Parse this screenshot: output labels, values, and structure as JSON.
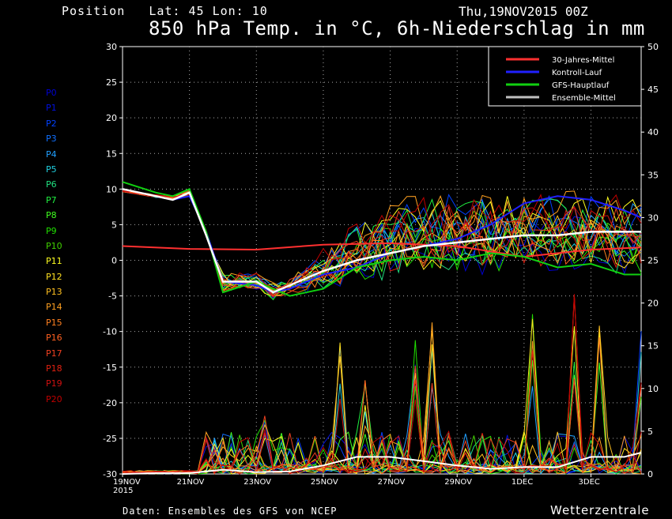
{
  "header": {
    "position": "Position   Lat: 45 Lon: 10",
    "date": "Thu,19NOV2015 00Z",
    "title": "850 hPa Temp. in °C, 6h-Niederschlag in mm"
  },
  "footer": {
    "source": "Daten: Ensembles des GFS von NCEP",
    "brand": "Wetterzentrale"
  },
  "ensemble_labels": [
    {
      "name": "P0",
      "color": "#0000d0"
    },
    {
      "name": "P1",
      "color": "#0010e0"
    },
    {
      "name": "P2",
      "color": "#0040ff"
    },
    {
      "name": "P3",
      "color": "#1070ff"
    },
    {
      "name": "P4",
      "color": "#20a0ff"
    },
    {
      "name": "P5",
      "color": "#20d0e0"
    },
    {
      "name": "P6",
      "color": "#20e080"
    },
    {
      "name": "P7",
      "color": "#20f040"
    },
    {
      "name": "P8",
      "color": "#40ff20"
    },
    {
      "name": "P9",
      "color": "#20e000"
    },
    {
      "name": "P10",
      "color": "#40d000"
    },
    {
      "name": "P11",
      "color": "#ffff20"
    },
    {
      "name": "P12",
      "color": "#ffe020"
    },
    {
      "name": "P13",
      "color": "#ffc020"
    },
    {
      "name": "P14",
      "color": "#ffa020"
    },
    {
      "name": "P15",
      "color": "#ff8020"
    },
    {
      "name": "P16",
      "color": "#ff6020"
    },
    {
      "name": "P17",
      "color": "#f04020"
    },
    {
      "name": "P18",
      "color": "#e02010"
    },
    {
      "name": "P19",
      "color": "#d01010"
    },
    {
      "name": "P20",
      "color": "#c00000"
    }
  ],
  "chart_data": {
    "type": "line",
    "title": "850 hPa Temp. in °C, 6h-Niederschlag in mm",
    "x_tick_labels": [
      "19NOV",
      "21NOV",
      "23NOV",
      "25NOV",
      "27NOV",
      "29NOV",
      "1DEC",
      "3DEC"
    ],
    "x_sub_label": "2015",
    "x_range_days": [
      0,
      15.5
    ],
    "y_left_range": [
      -30,
      30
    ],
    "y_left_ticks": [
      30,
      25,
      20,
      15,
      10,
      5,
      0,
      -5,
      -10,
      -15,
      -20,
      -25,
      -30
    ],
    "y_right_range": [
      0,
      50
    ],
    "y_right_ticks": [
      50,
      45,
      40,
      35,
      30,
      25,
      20,
      15,
      10,
      5,
      0
    ],
    "grid": true,
    "legend_position": "top-right",
    "legend": [
      {
        "name": "30-Jahres-Mittel",
        "color": "#ff3030"
      },
      {
        "name": "Kontroll-Lauf",
        "color": "#2020ff"
      },
      {
        "name": "GFS-Hauptlauf",
        "color": "#10d010"
      },
      {
        "name": "Ensemble-Mittel",
        "color": "#c0c0c0"
      }
    ],
    "series": [
      {
        "name": "30-Jahres-Mittel",
        "color": "#ff3030",
        "x": [
          0,
          2,
          4,
          6,
          8,
          10,
          12,
          14,
          15.5
        ],
        "y": [
          2,
          1.6,
          1.5,
          2.2,
          2.4,
          2.0,
          0.5,
          1.5,
          1.8
        ]
      },
      {
        "name": "Kontroll-Lauf",
        "color": "#2020ff",
        "x": [
          0,
          1,
          1.5,
          2,
          2.5,
          3,
          4,
          4.5,
          5,
          6,
          7,
          8,
          9,
          10,
          11,
          12,
          13,
          14,
          15,
          15.5
        ],
        "y": [
          10,
          9,
          8.5,
          9,
          4,
          -3,
          -3.5,
          -4.5,
          -4,
          -2,
          -1,
          1,
          2,
          3,
          5,
          8,
          9,
          8.5,
          7,
          6
        ]
      },
      {
        "name": "GFS-Hauptlauf",
        "color": "#10d010",
        "x": [
          0,
          1,
          1.5,
          2,
          2.5,
          3,
          4,
          4.5,
          5,
          6,
          7,
          8,
          9,
          10,
          11,
          12,
          13,
          14,
          15,
          15.5
        ],
        "y": [
          11,
          9.5,
          9,
          10,
          4,
          -4.5,
          -3,
          -4,
          -5,
          -4,
          -1,
          0,
          0.5,
          0,
          1,
          0.5,
          -1,
          -0.5,
          -2,
          -2
        ]
      },
      {
        "name": "Ensemble-Mittel",
        "color": "#ffffff",
        "x": [
          0,
          1,
          1.5,
          2,
          2.5,
          3,
          4,
          4.5,
          5,
          6,
          7,
          8,
          9,
          10,
          11,
          12,
          13,
          14,
          15,
          15.5
        ],
        "y": [
          10,
          9,
          8.5,
          9.5,
          3.5,
          -3,
          -3,
          -4.5,
          -3.5,
          -1.5,
          0,
          1,
          2,
          2.5,
          3,
          3.5,
          3.5,
          4,
          4,
          4
        ]
      }
    ],
    "ensemble_temperature_spread": {
      "x": [
        0,
        1,
        1.5,
        2,
        2.5,
        3,
        4,
        4.5,
        5,
        6,
        7,
        8,
        9,
        10,
        11,
        12,
        13,
        14,
        15,
        15.5
      ],
      "min": [
        9,
        8,
        7.5,
        8,
        3,
        -5,
        -4.5,
        -6,
        -5,
        -5,
        -4,
        -4,
        -3,
        -3,
        -3,
        -2,
        -3,
        -2,
        -3,
        -3
      ],
      "max": [
        10.5,
        10,
        10,
        11,
        5,
        -1.5,
        -1.5,
        -3,
        -2,
        2,
        6,
        9,
        10,
        11,
        10,
        10,
        11,
        10,
        10,
        9
      ]
    },
    "precipitation_mm_peaks": [
      {
        "x": 4.2,
        "y": 9
      },
      {
        "x": 6.5,
        "y": 16
      },
      {
        "x": 7.2,
        "y": 11
      },
      {
        "x": 8.7,
        "y": 16
      },
      {
        "x": 9.2,
        "y": 18
      },
      {
        "x": 12.2,
        "y": 19
      },
      {
        "x": 13.4,
        "y": 22
      },
      {
        "x": 14.2,
        "y": 18
      },
      {
        "x": 15.5,
        "y": 18
      }
    ],
    "ensemble_mittel_precip_mm": {
      "x": [
        0,
        1,
        2,
        3,
        4,
        5,
        6,
        7,
        8,
        9,
        10,
        11,
        12,
        13,
        14,
        15,
        15.5
      ],
      "y": [
        0,
        0.1,
        0.1,
        0.5,
        0.2,
        0.3,
        1,
        2,
        2,
        1.5,
        1,
        0.6,
        0.8,
        0.8,
        2,
        2,
        2.5
      ]
    }
  }
}
